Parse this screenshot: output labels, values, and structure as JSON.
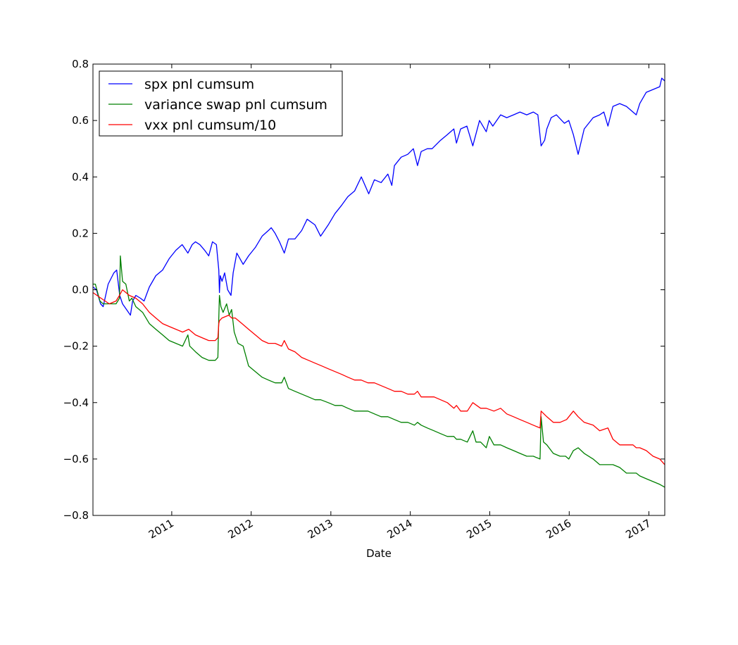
{
  "chart_data": {
    "type": "line",
    "title": "",
    "xlabel": "Date",
    "ylabel": "",
    "ylim": [
      -0.8,
      0.8
    ],
    "xlim": [
      "2010-01-04",
      "2017-03-15"
    ],
    "y_ticks": [
      -0.8,
      -0.6,
      -0.4,
      -0.2,
      0.0,
      0.2,
      0.4,
      0.6,
      0.8
    ],
    "y_tick_labels": [
      "−0.8",
      "−0.6",
      "−0.4",
      "−0.2",
      "0.0",
      "0.2",
      "0.4",
      "0.6",
      "0.8"
    ],
    "x_ticks": [
      "2011-01-01",
      "2012-01-01",
      "2013-01-01",
      "2014-01-01",
      "2015-01-01",
      "2016-01-01",
      "2017-01-01"
    ],
    "x_tick_labels": [
      "2011",
      "2012",
      "2013",
      "2014",
      "2015",
      "2016",
      "2017"
    ],
    "grid": false,
    "legend_position": "top-left",
    "series": [
      {
        "name": "spx pnl cumsum",
        "color": "#0000ff",
        "x": [
          "2010-01-04",
          "2010-01-20",
          "2010-02-08",
          "2010-02-20",
          "2010-03-15",
          "2010-04-10",
          "2010-04-23",
          "2010-05-07",
          "2010-05-20",
          "2010-06-07",
          "2010-06-25",
          "2010-07-05",
          "2010-07-20",
          "2010-08-10",
          "2010-08-27",
          "2010-09-20",
          "2010-10-20",
          "2010-11-20",
          "2010-12-20",
          "2011-01-20",
          "2011-02-18",
          "2011-03-16",
          "2011-04-05",
          "2011-04-20",
          "2011-05-10",
          "2011-06-01",
          "2011-06-20",
          "2011-07-07",
          "2011-07-25",
          "2011-08-05",
          "2011-08-08",
          "2011-08-12",
          "2011-08-20",
          "2011-09-01",
          "2011-09-15",
          "2011-09-30",
          "2011-10-10",
          "2011-10-27",
          "2011-11-25",
          "2011-12-20",
          "2012-01-20",
          "2012-02-20",
          "2012-03-20",
          "2012-04-02",
          "2012-04-20",
          "2012-05-10",
          "2012-06-01",
          "2012-06-20",
          "2012-07-20",
          "2012-08-20",
          "2012-09-14",
          "2012-10-20",
          "2012-11-15",
          "2012-12-20",
          "2013-01-20",
          "2013-02-20",
          "2013-03-20",
          "2013-04-20",
          "2013-05-21",
          "2013-06-24",
          "2013-07-20",
          "2013-08-20",
          "2013-09-20",
          "2013-10-08",
          "2013-10-20",
          "2013-11-20",
          "2013-12-20",
          "2014-01-15",
          "2014-02-03",
          "2014-02-20",
          "2014-03-20",
          "2014-04-11",
          "2014-05-20",
          "2014-06-20",
          "2014-07-20",
          "2014-08-01",
          "2014-08-20",
          "2014-09-18",
          "2014-10-15",
          "2014-11-15",
          "2014-12-16",
          "2014-12-29",
          "2015-01-15",
          "2015-02-20",
          "2015-03-20",
          "2015-04-20",
          "2015-05-20",
          "2015-06-20",
          "2015-07-20",
          "2015-08-10",
          "2015-08-25",
          "2015-09-10",
          "2015-09-20",
          "2015-10-10",
          "2015-11-03",
          "2015-12-10",
          "2015-12-30",
          "2016-01-20",
          "2016-02-11",
          "2016-03-10",
          "2016-04-20",
          "2016-05-20",
          "2016-06-08",
          "2016-06-27",
          "2016-07-20",
          "2016-08-20",
          "2016-09-20",
          "2016-11-04",
          "2016-11-20",
          "2016-12-20",
          "2017-01-20",
          "2017-02-20",
          "2017-03-01",
          "2017-03-15"
        ],
        "y": [
          0.01,
          0.0,
          -0.05,
          -0.06,
          0.02,
          0.06,
          0.07,
          -0.02,
          -0.05,
          -0.07,
          -0.09,
          -0.04,
          -0.02,
          -0.03,
          -0.04,
          0.01,
          0.05,
          0.07,
          0.11,
          0.14,
          0.16,
          0.13,
          0.16,
          0.17,
          0.16,
          0.14,
          0.12,
          0.17,
          0.16,
          0.07,
          -0.01,
          0.05,
          0.03,
          0.06,
          0.0,
          -0.02,
          0.06,
          0.13,
          0.09,
          0.12,
          0.15,
          0.19,
          0.21,
          0.22,
          0.2,
          0.17,
          0.13,
          0.18,
          0.18,
          0.21,
          0.25,
          0.23,
          0.19,
          0.23,
          0.27,
          0.3,
          0.33,
          0.35,
          0.4,
          0.34,
          0.39,
          0.38,
          0.41,
          0.37,
          0.44,
          0.47,
          0.48,
          0.5,
          0.44,
          0.49,
          0.5,
          0.5,
          0.53,
          0.55,
          0.57,
          0.52,
          0.57,
          0.58,
          0.51,
          0.6,
          0.56,
          0.6,
          0.58,
          0.62,
          0.61,
          0.62,
          0.63,
          0.62,
          0.63,
          0.62,
          0.51,
          0.53,
          0.57,
          0.61,
          0.62,
          0.59,
          0.6,
          0.55,
          0.48,
          0.57,
          0.61,
          0.62,
          0.63,
          0.58,
          0.65,
          0.66,
          0.65,
          0.62,
          0.66,
          0.7,
          0.71,
          0.72,
          0.75,
          0.74
        ]
      },
      {
        "name": "variance swap pnl cumsum",
        "color": "#008000",
        "x": [
          "2010-01-04",
          "2010-01-15",
          "2010-02-05",
          "2010-02-20",
          "2010-03-20",
          "2010-04-20",
          "2010-05-06",
          "2010-05-10",
          "2010-05-20",
          "2010-06-04",
          "2010-06-20",
          "2010-07-02",
          "2010-07-20",
          "2010-08-20",
          "2010-09-20",
          "2010-10-20",
          "2010-11-20",
          "2010-12-20",
          "2011-01-20",
          "2011-02-20",
          "2011-03-16",
          "2011-03-25",
          "2011-04-20",
          "2011-05-20",
          "2011-06-20",
          "2011-07-20",
          "2011-08-01",
          "2011-08-05",
          "2011-08-08",
          "2011-08-15",
          "2011-08-25",
          "2011-09-10",
          "2011-09-22",
          "2011-10-03",
          "2011-10-15",
          "2011-11-01",
          "2011-11-25",
          "2011-12-20",
          "2012-01-20",
          "2012-02-20",
          "2012-03-20",
          "2012-04-20",
          "2012-05-20",
          "2012-06-01",
          "2012-06-20",
          "2012-07-20",
          "2012-08-20",
          "2012-09-20",
          "2012-10-20",
          "2012-11-15",
          "2012-12-20",
          "2013-01-20",
          "2013-02-20",
          "2013-03-20",
          "2013-04-20",
          "2013-05-20",
          "2013-06-20",
          "2013-07-20",
          "2013-08-20",
          "2013-09-20",
          "2013-10-20",
          "2013-11-20",
          "2013-12-20",
          "2014-01-20",
          "2014-02-03",
          "2014-02-20",
          "2014-03-20",
          "2014-04-20",
          "2014-05-20",
          "2014-06-20",
          "2014-07-20",
          "2014-08-01",
          "2014-08-20",
          "2014-09-20",
          "2014-10-15",
          "2014-10-30",
          "2014-11-20",
          "2014-12-16",
          "2014-12-30",
          "2015-01-20",
          "2015-02-20",
          "2015-03-20",
          "2015-04-20",
          "2015-05-20",
          "2015-06-20",
          "2015-07-20",
          "2015-08-20",
          "2015-08-25",
          "2015-09-05",
          "2015-09-20",
          "2015-10-20",
          "2015-11-20",
          "2015-12-15",
          "2015-12-30",
          "2016-01-20",
          "2016-02-11",
          "2016-03-10",
          "2016-04-20",
          "2016-05-20",
          "2016-06-27",
          "2016-07-20",
          "2016-08-20",
          "2016-09-20",
          "2016-10-20",
          "2016-11-04",
          "2016-11-20",
          "2016-12-20",
          "2017-01-20",
          "2017-02-20",
          "2017-03-15"
        ],
        "y": [
          0.02,
          0.02,
          -0.04,
          -0.05,
          -0.05,
          -0.05,
          -0.03,
          0.12,
          0.03,
          0.02,
          -0.04,
          -0.03,
          -0.06,
          -0.08,
          -0.12,
          -0.14,
          -0.16,
          -0.18,
          -0.19,
          -0.2,
          -0.16,
          -0.2,
          -0.22,
          -0.24,
          -0.25,
          -0.25,
          -0.24,
          -0.1,
          -0.02,
          -0.06,
          -0.08,
          -0.05,
          -0.09,
          -0.07,
          -0.15,
          -0.19,
          -0.2,
          -0.27,
          -0.29,
          -0.31,
          -0.32,
          -0.33,
          -0.33,
          -0.31,
          -0.35,
          -0.36,
          -0.37,
          -0.38,
          -0.39,
          -0.39,
          -0.4,
          -0.41,
          -0.41,
          -0.42,
          -0.43,
          -0.43,
          -0.43,
          -0.44,
          -0.45,
          -0.45,
          -0.46,
          -0.47,
          -0.47,
          -0.48,
          -0.47,
          -0.48,
          -0.49,
          -0.5,
          -0.51,
          -0.52,
          -0.52,
          -0.53,
          -0.53,
          -0.54,
          -0.5,
          -0.54,
          -0.54,
          -0.56,
          -0.52,
          -0.55,
          -0.55,
          -0.56,
          -0.57,
          -0.58,
          -0.59,
          -0.59,
          -0.6,
          -0.45,
          -0.54,
          -0.55,
          -0.58,
          -0.59,
          -0.59,
          -0.6,
          -0.57,
          -0.56,
          -0.58,
          -0.6,
          -0.62,
          -0.62,
          -0.62,
          -0.63,
          -0.65,
          -0.65,
          -0.65,
          -0.66,
          -0.67,
          -0.68,
          -0.69,
          -0.7
        ]
      },
      {
        "name": "vxx pnl cumsum/10",
        "color": "#ff0000",
        "x": [
          "2010-01-04",
          "2010-02-10",
          "2010-03-20",
          "2010-04-20",
          "2010-05-06",
          "2010-05-20",
          "2010-06-20",
          "2010-07-20",
          "2010-08-20",
          "2010-09-20",
          "2010-10-20",
          "2010-11-20",
          "2010-12-20",
          "2011-01-20",
          "2011-02-20",
          "2011-03-20",
          "2011-04-20",
          "2011-05-20",
          "2011-06-20",
          "2011-07-20",
          "2011-08-01",
          "2011-08-05",
          "2011-08-08",
          "2011-08-20",
          "2011-09-20",
          "2011-10-03",
          "2011-10-20",
          "2011-11-20",
          "2011-12-20",
          "2012-01-20",
          "2012-02-20",
          "2012-03-20",
          "2012-04-20",
          "2012-05-20",
          "2012-06-01",
          "2012-06-20",
          "2012-07-20",
          "2012-08-20",
          "2012-09-20",
          "2012-10-20",
          "2012-11-20",
          "2012-12-20",
          "2013-01-20",
          "2013-02-20",
          "2013-03-20",
          "2013-04-20",
          "2013-05-20",
          "2013-06-20",
          "2013-07-20",
          "2013-08-20",
          "2013-09-20",
          "2013-10-20",
          "2013-11-20",
          "2013-12-20",
          "2014-01-20",
          "2014-02-03",
          "2014-02-20",
          "2014-03-20",
          "2014-04-20",
          "2014-05-20",
          "2014-06-20",
          "2014-07-20",
          "2014-08-01",
          "2014-08-20",
          "2014-09-20",
          "2014-10-15",
          "2014-11-20",
          "2014-12-16",
          "2015-01-20",
          "2015-02-20",
          "2015-03-20",
          "2015-04-20",
          "2015-05-20",
          "2015-06-20",
          "2015-07-20",
          "2015-08-20",
          "2015-08-25",
          "2015-09-20",
          "2015-10-20",
          "2015-11-20",
          "2015-12-20",
          "2016-01-20",
          "2016-02-11",
          "2016-03-10",
          "2016-04-20",
          "2016-05-20",
          "2016-06-27",
          "2016-07-20",
          "2016-08-20",
          "2016-09-20",
          "2016-10-20",
          "2016-11-04",
          "2016-11-20",
          "2016-12-20",
          "2017-01-20",
          "2017-02-20",
          "2017-03-15"
        ],
        "y": [
          -0.01,
          -0.03,
          -0.05,
          -0.04,
          -0.02,
          0.0,
          -0.02,
          -0.03,
          -0.05,
          -0.08,
          -0.1,
          -0.12,
          -0.13,
          -0.14,
          -0.15,
          -0.14,
          -0.16,
          -0.17,
          -0.18,
          -0.18,
          -0.17,
          -0.12,
          -0.11,
          -0.1,
          -0.09,
          -0.1,
          -0.1,
          -0.12,
          -0.14,
          -0.16,
          -0.18,
          -0.19,
          -0.19,
          -0.2,
          -0.18,
          -0.21,
          -0.22,
          -0.24,
          -0.25,
          -0.26,
          -0.27,
          -0.28,
          -0.29,
          -0.3,
          -0.31,
          -0.32,
          -0.32,
          -0.33,
          -0.33,
          -0.34,
          -0.35,
          -0.36,
          -0.36,
          -0.37,
          -0.37,
          -0.36,
          -0.38,
          -0.38,
          -0.38,
          -0.39,
          -0.4,
          -0.42,
          -0.41,
          -0.43,
          -0.43,
          -0.4,
          -0.42,
          -0.42,
          -0.43,
          -0.42,
          -0.44,
          -0.45,
          -0.46,
          -0.47,
          -0.48,
          -0.49,
          -0.43,
          -0.45,
          -0.47,
          -0.47,
          -0.46,
          -0.43,
          -0.45,
          -0.47,
          -0.48,
          -0.5,
          -0.49,
          -0.53,
          -0.55,
          -0.55,
          -0.55,
          -0.56,
          -0.56,
          -0.57,
          -0.59,
          -0.6,
          -0.62
        ]
      }
    ]
  }
}
